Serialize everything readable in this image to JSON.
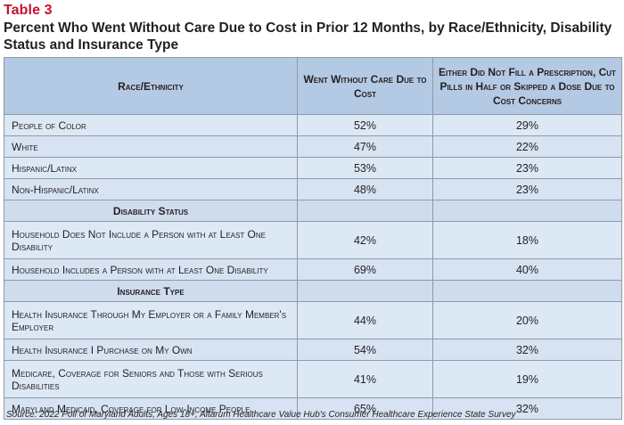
{
  "table_label": "Table 3",
  "title": "Percent Who Went Without Care Due to Cost in Prior 12 Months, by Race/Ethnicity, Disability Status and Insurance Type",
  "headers": {
    "col1": "Race/Ethnicity",
    "col2": "Went Without Care Due to Cost",
    "col3": "Either Did Not Fill a Prescription, Cut Pills in Half or Skipped a Dose Due to Cost Concerns"
  },
  "race_rows": [
    {
      "label": "People of Color",
      "went_without": "52%",
      "prescription": "29%"
    },
    {
      "label": "White",
      "went_without": "47%",
      "prescription": "22%"
    },
    {
      "label": "Hispanic/Latinx",
      "went_without": "53%",
      "prescription": "23%"
    },
    {
      "label": "Non-Hispanic/Latinx",
      "went_without": "48%",
      "prescription": "23%"
    }
  ],
  "disability_section": "Disability Status",
  "disability_rows": [
    {
      "label": "Household Does Not Include a Person with at Least One Disability",
      "went_without": "42%",
      "prescription": "18%"
    },
    {
      "label": "Household Includes a Person with at Least One Disability",
      "went_without": "69%",
      "prescription": "40%"
    }
  ],
  "insurance_section": "Insurance Type",
  "insurance_rows": [
    {
      "label": "Health Insurance Through My Employer or a Family Member's Employer",
      "went_without": "44%",
      "prescription": "20%"
    },
    {
      "label": "Health Insurance I Purchase on My Own",
      "went_without": "54%",
      "prescription": "32%"
    },
    {
      "label": "Medicare, Coverage for Seniors and Those with Serious Disabilities",
      "went_without": "41%",
      "prescription": "19%"
    },
    {
      "label": "Maryland Medicaid, Coverage for Low-Income People",
      "went_without": "65%",
      "prescription": "32%"
    }
  ],
  "source": "Source: 2022 Poll of Maryland Adults, Ages 18+, Altarum Healthcare Value Hub's Consumer Healthcare Experience State Survey"
}
